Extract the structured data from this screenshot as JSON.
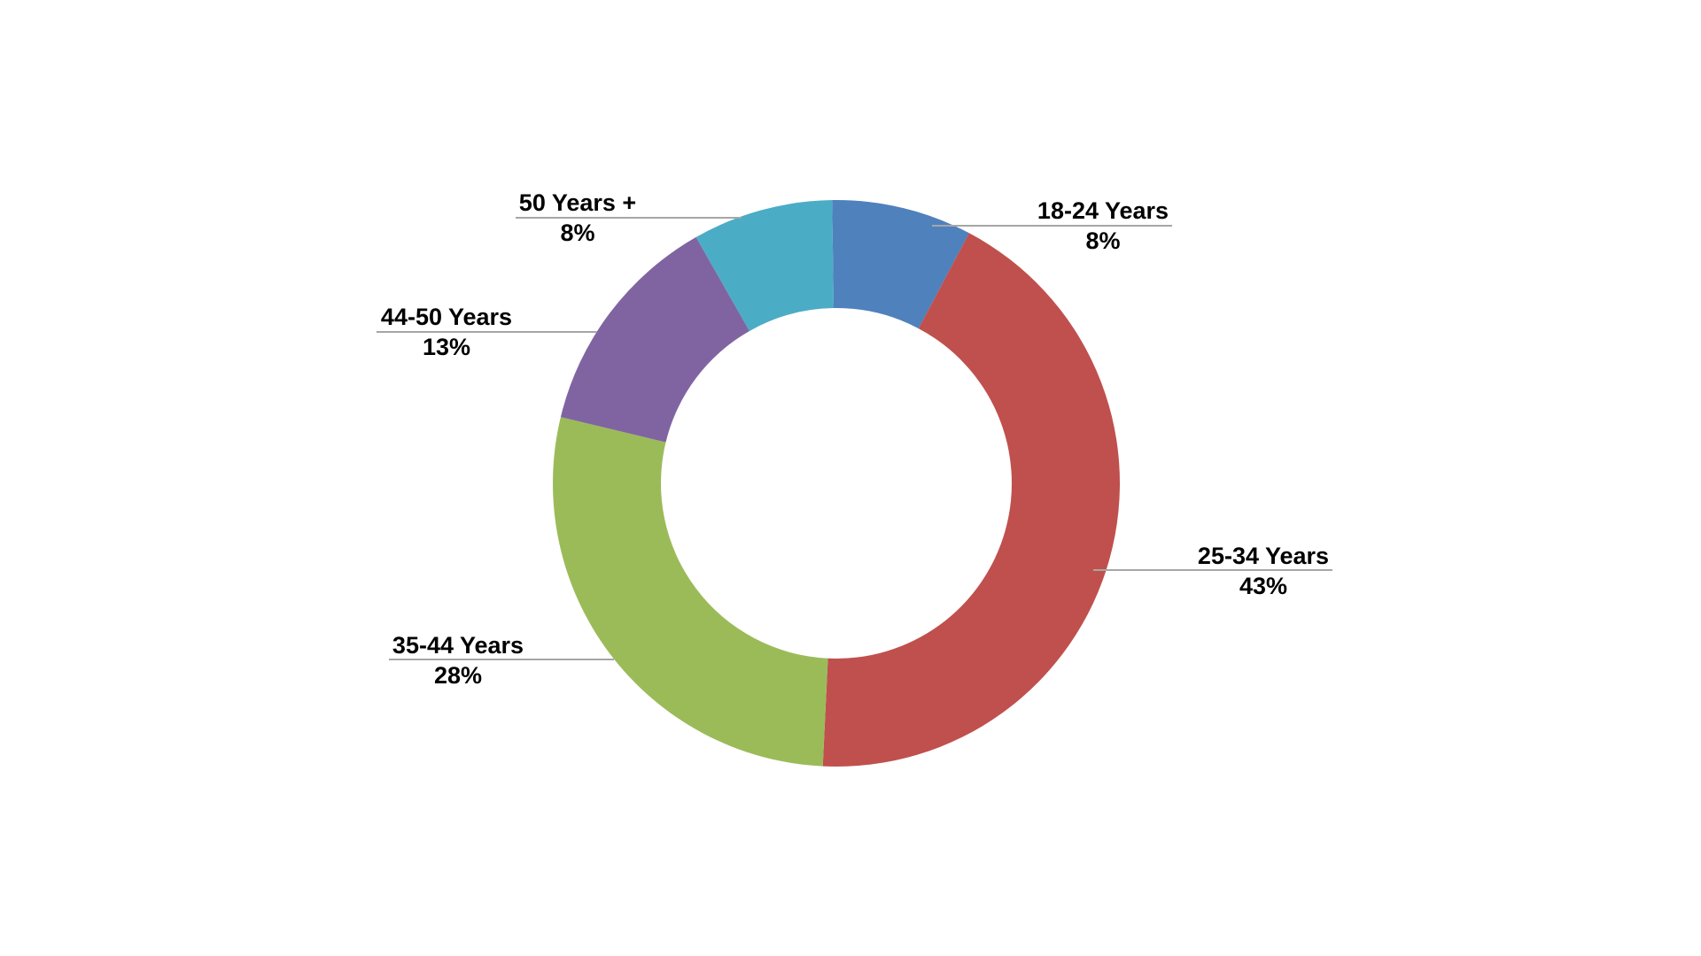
{
  "chart_data": {
    "type": "pie",
    "donut": true,
    "categories": [
      "18-24 Years",
      "25-34 Years",
      "35-44 Years",
      "44-50 Years",
      "50 Years +"
    ],
    "values": [
      8,
      43,
      28,
      13,
      8
    ],
    "value_labels": [
      "8%",
      "43%",
      "28%",
      "13%",
      "8%"
    ],
    "colors": [
      "#4f81bd",
      "#c0504d",
      "#9bbb59",
      "#8064a2",
      "#4bacc6"
    ],
    "title": "",
    "legend": "none",
    "data_labels": "outside with leader lines"
  }
}
